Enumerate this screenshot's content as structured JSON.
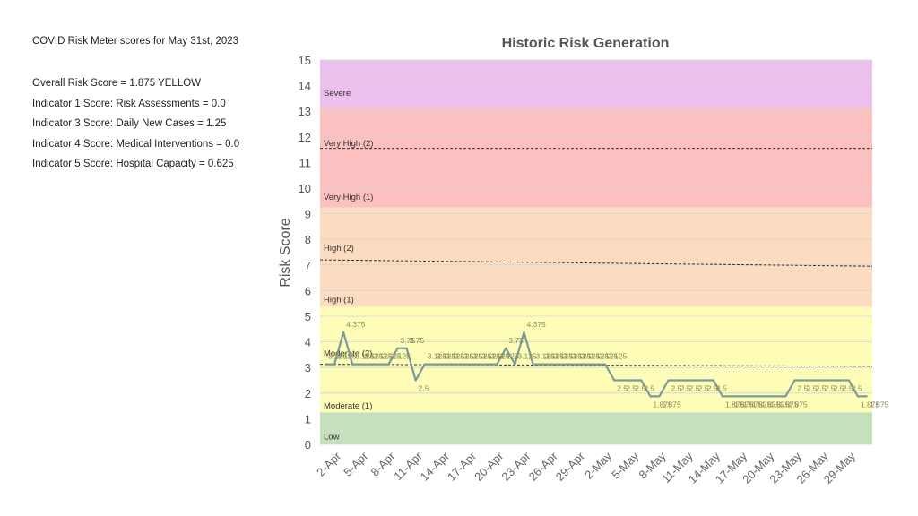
{
  "summary": {
    "heading": "COVID Risk Meter scores for May 31st, 2023",
    "lines": [
      "Overall Risk Score = 1.875  YELLOW",
      "Indicator 1 Score: Risk Assessments = 0.0",
      "Indicator 3 Score: Daily New Cases  = 1.25",
      "Indicator 4 Score: Medical Interventions  = 0.0",
      "Indicator 5 Score: Hospital Capacity = 0.625"
    ]
  },
  "chart_data": {
    "type": "line",
    "title": "Historic Risk Generation",
    "xlabel": "",
    "ylabel": "Risk Score",
    "ylim": [
      0,
      15
    ],
    "yticks": [
      0,
      1,
      2,
      3,
      4,
      5,
      6,
      7,
      8,
      9,
      10,
      11,
      12,
      13,
      14,
      15
    ],
    "grid": "horizontal",
    "legend": "none",
    "x_tick_labels": [
      "2-Apr",
      "5-Apr",
      "8-Apr",
      "11-Apr",
      "14-Apr",
      "17-Apr",
      "20-Apr",
      "23-Apr",
      "26-Apr",
      "29-Apr",
      "2-May",
      "5-May",
      "8-May",
      "11-May",
      "14-May",
      "17-May",
      "20-May",
      "23-May",
      "26-May",
      "29-May"
    ],
    "x": [
      "1-Apr",
      "2-Apr",
      "3-Apr",
      "4-Apr",
      "5-Apr",
      "6-Apr",
      "7-Apr",
      "8-Apr",
      "9-Apr",
      "10-Apr",
      "11-Apr",
      "12-Apr",
      "13-Apr",
      "14-Apr",
      "15-Apr",
      "16-Apr",
      "17-Apr",
      "18-Apr",
      "19-Apr",
      "20-Apr",
      "21-Apr",
      "22-Apr",
      "23-Apr",
      "24-Apr",
      "25-Apr",
      "26-Apr",
      "27-Apr",
      "28-Apr",
      "29-Apr",
      "30-Apr",
      "1-May",
      "2-May",
      "3-May",
      "4-May",
      "5-May",
      "6-May",
      "7-May",
      "8-May",
      "9-May",
      "10-May",
      "11-May",
      "12-May",
      "13-May",
      "14-May",
      "15-May",
      "16-May",
      "17-May",
      "18-May",
      "19-May",
      "20-May",
      "21-May",
      "22-May",
      "23-May",
      "24-May",
      "25-May",
      "26-May",
      "27-May",
      "28-May",
      "29-May",
      "30-May",
      "31-May"
    ],
    "series": [
      {
        "color": "#7a9a9a",
        "values": [
          3.125,
          3.125,
          4.375,
          3.125,
          3.125,
          3.125,
          3.125,
          3.125,
          3.75,
          3.75,
          2.5,
          3.125,
          3.125,
          3.125,
          3.125,
          3.125,
          3.125,
          3.125,
          3.125,
          3.125,
          3.75,
          3.125,
          4.375,
          3.125,
          3.125,
          3.125,
          3.125,
          3.125,
          3.125,
          3.125,
          3.125,
          3.125,
          2.5,
          2.5,
          2.5,
          2.5,
          1.875,
          1.875,
          2.5,
          2.5,
          2.5,
          2.5,
          2.5,
          2.5,
          1.875,
          1.875,
          1.875,
          1.875,
          1.875,
          1.875,
          1.875,
          1.875,
          2.5,
          2.5,
          2.5,
          2.5,
          2.5,
          2.5,
          2.5,
          1.875,
          1.875
        ],
        "data_labels": [
          "3.125",
          "3.125",
          "4.375",
          "3.125",
          "3.125",
          "3.125",
          "3.125",
          "3.125",
          "3.75",
          "3.75",
          "2.5",
          "3.125",
          "3.125",
          "3.125",
          "3.125",
          "3.125",
          "3.125",
          "3.125",
          "3.125",
          "3.125",
          "3.75",
          "3.125",
          "4.375",
          "3.125",
          "3.125",
          "3.125",
          "3.125",
          "3.125",
          "3.125",
          "3.125",
          "3.125",
          "3.125",
          "2.5",
          "2.5",
          "2.5",
          "2.5",
          "1.875",
          "1.875",
          "2.5",
          "2.5",
          "2.5",
          "2.5",
          "2.5",
          "2.5",
          "1.875",
          "1.875",
          "1.875",
          "1.875",
          "1.875",
          "1.875",
          "1.875",
          "1.875",
          "2.5",
          "2.5",
          "2.5",
          "2.5",
          "2.5",
          "2.5",
          "2.5",
          "1.875",
          "1.875"
        ]
      }
    ],
    "bands": [
      {
        "label": "Low",
        "from": 0,
        "to": 1.25,
        "color": "#c4e0bc"
      },
      {
        "label": "Moderate (1)",
        "from": 1.25,
        "to": 5.375,
        "color": "#fdfdb8"
      },
      {
        "label": "High (1)",
        "from": 5.375,
        "to": 9.25,
        "color": "#fbdcc0"
      },
      {
        "label": "Very High (1)",
        "from": 9.25,
        "to": 13.125,
        "color": "#fcc0c0"
      },
      {
        "label": "Severe",
        "from": 13.125,
        "to": 15,
        "color": "#ecc0ec"
      }
    ],
    "band_labels": [
      {
        "label": "Low",
        "y": 0.2
      },
      {
        "label": "Moderate (1)",
        "y": 1.4
      },
      {
        "label": "Moderate (2)",
        "y": 3.45
      },
      {
        "label": "High (1)",
        "y": 5.55
      },
      {
        "label": "High (2)",
        "y": 7.55
      },
      {
        "label": "Very High (1)",
        "y": 9.55
      },
      {
        "label": "Very High (2)",
        "y": 11.65
      },
      {
        "label": "Severe",
        "y": 13.6
      }
    ],
    "threshold_lines": [
      {
        "from": 3.125,
        "to": 3.05
      },
      {
        "from": 7.2,
        "to": 6.95
      },
      {
        "from": 11.55,
        "to": 11.55
      }
    ]
  }
}
